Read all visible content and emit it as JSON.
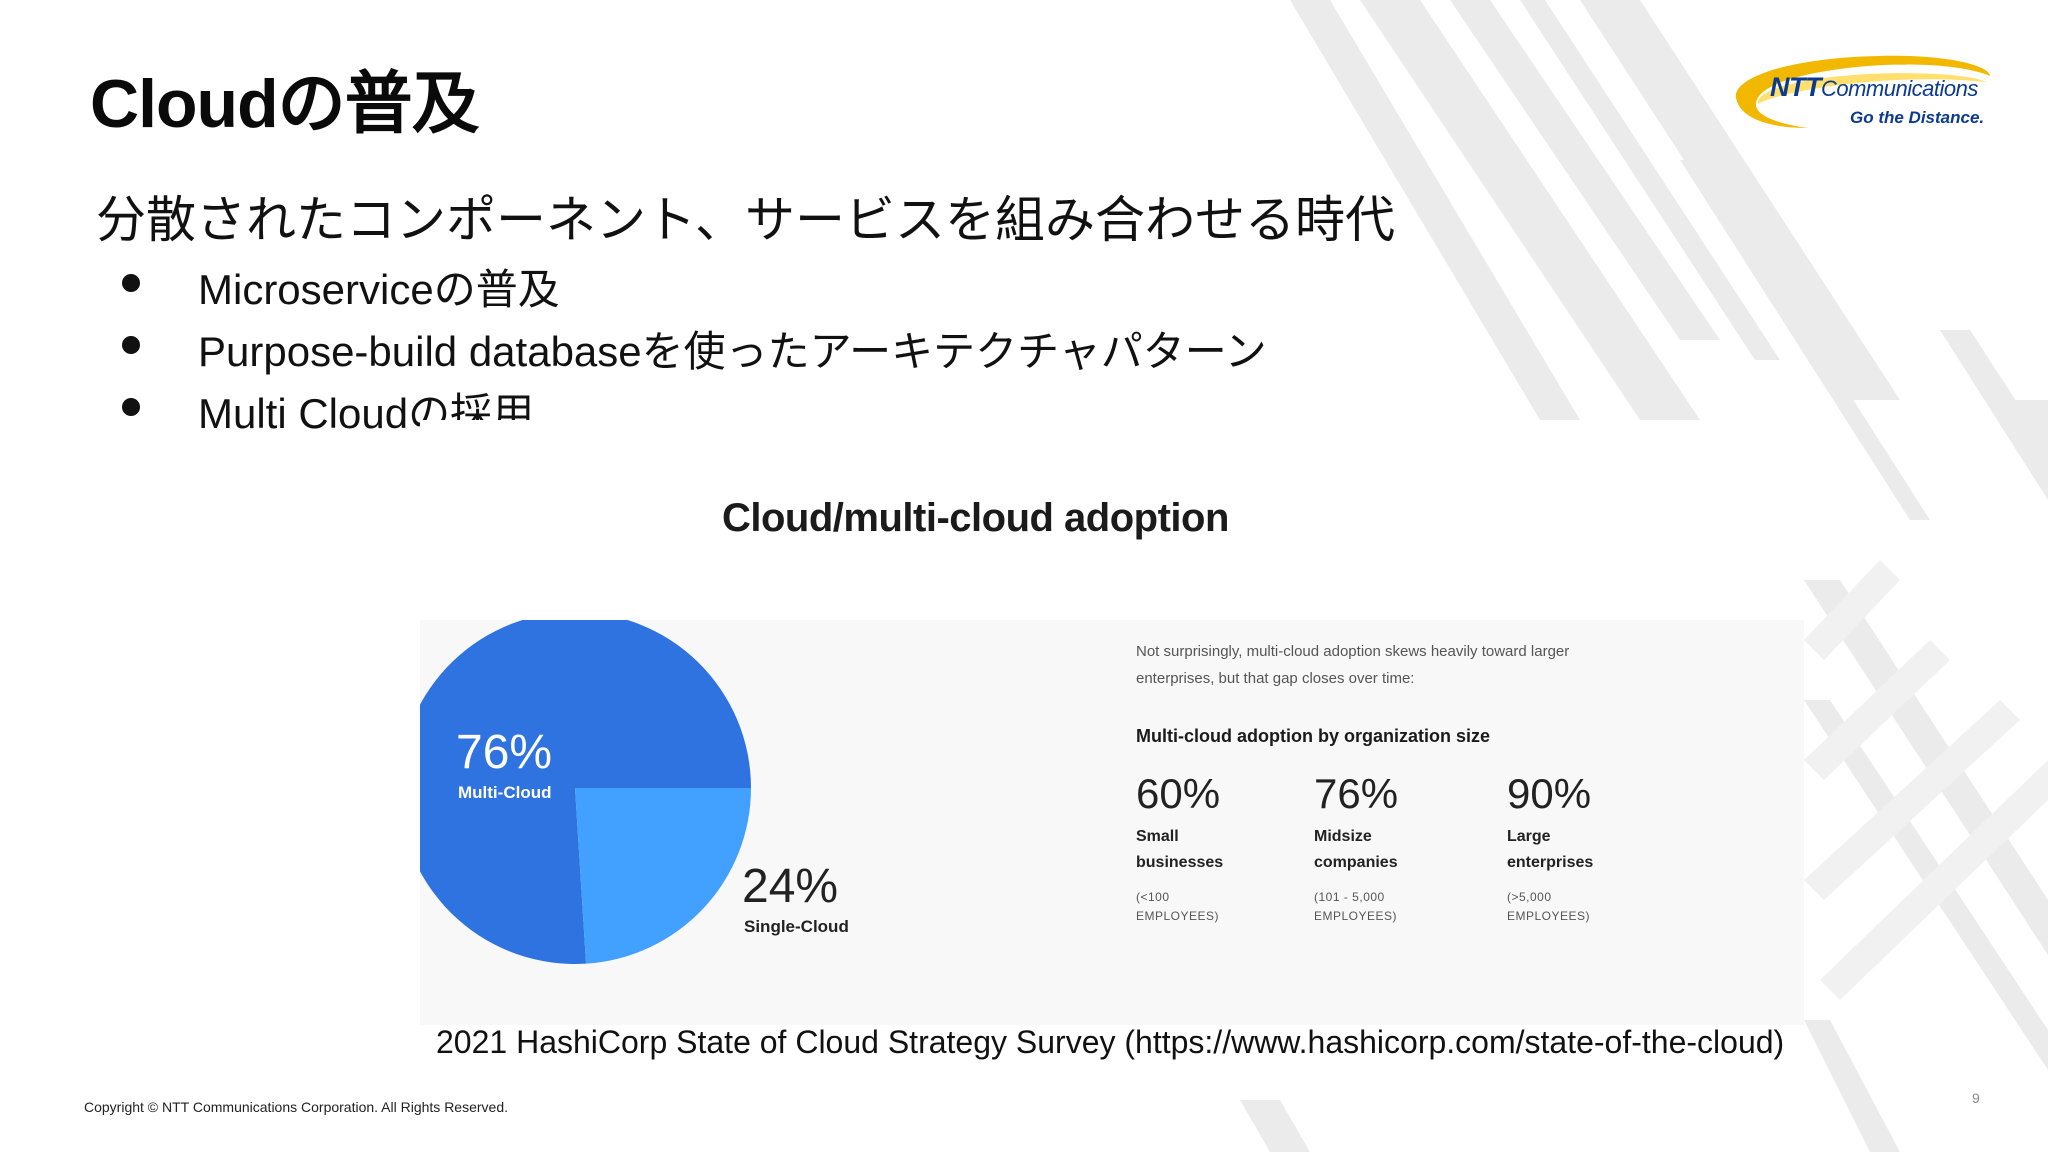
{
  "slide": {
    "title": "Cloudの普及",
    "headline": "分散されたコンポーネント、サービスを組み合わせる時代",
    "bullets": [
      "Microserviceの普及",
      "Purpose-build databaseを使ったアーキテクチャパターン",
      "Multi Cloudの採用"
    ],
    "source": "2021 HashiCorp State of Cloud Strategy Survey (https://www.hashicorp.com/state-of-the-cloud)",
    "copyright": "Copyright © NTT Communications Corporation. All Rights Reserved.",
    "page_number": "9"
  },
  "logo": {
    "brand_bold": "NTT",
    "brand_rest": "Communications",
    "tagline": "Go the Distance."
  },
  "colors": {
    "pie_multi": "#2f73e0",
    "pie_single": "#42a0ff",
    "logo_swoosh": "#f2b800",
    "logo_text": "#0b3a8f"
  },
  "chart_data": [
    {
      "type": "pie",
      "title": "Cloud/multi-cloud adoption",
      "slices": [
        {
          "label": "Multi-Cloud",
          "value": 76,
          "display": "76%"
        },
        {
          "label": "Single-Cloud",
          "value": 24,
          "display": "24%"
        }
      ]
    },
    {
      "type": "table",
      "intro": "Not surprisingly, multi-cloud adoption skews heavily toward larger enterprises, but that gap closes over time:",
      "title": "Multi-cloud adoption by organization size",
      "items": [
        {
          "value": 60,
          "display": "60%",
          "label_line1": "Small",
          "label_line2": "businesses",
          "range_line1": "(<100",
          "range_line2": "EMPLOYEES)"
        },
        {
          "value": 76,
          "display": "76%",
          "label_line1": "Midsize",
          "label_line2": "companies",
          "range_line1": "(101 - 5,000",
          "range_line2": "EMPLOYEES)"
        },
        {
          "value": 90,
          "display": "90%",
          "label_line1": "Large",
          "label_line2": "enterprises",
          "range_line1": "(>5,000",
          "range_line2": "EMPLOYEES)"
        }
      ]
    }
  ]
}
